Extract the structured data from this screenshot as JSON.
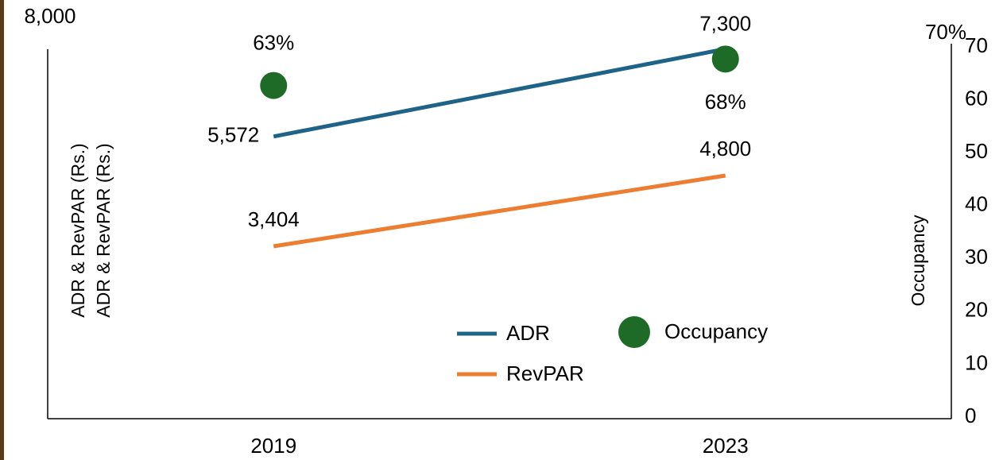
{
  "chart_data": {
    "type": "line",
    "categories": [
      "2019",
      "2023"
    ],
    "series": [
      {
        "name": "ADR",
        "color": "#1f6488",
        "values": [
          5572,
          7300
        ],
        "value_labels": [
          "5,572",
          "7,300"
        ]
      },
      {
        "name": "RevPAR",
        "color": "#ed7d31",
        "values": [
          3404,
          4800
        ],
        "value_labels": [
          "3,404",
          "4,800"
        ]
      },
      {
        "name": "Occupancy",
        "type": "scatter",
        "axis": "y2",
        "color": "#1e6b28",
        "values": [
          63,
          68
        ],
        "value_labels": [
          "63%",
          "68%"
        ]
      }
    ],
    "ylim": [
      0,
      8000
    ],
    "yticks": [
      {
        "value": 8000,
        "label": "8,000"
      }
    ],
    "y2lim": [
      0,
      70
    ],
    "y2ticks": [
      0,
      10,
      20,
      30,
      40,
      50,
      60,
      70
    ],
    "y2_top_label": "70%",
    "y_labels": [
      "ADR & RevPAR (Rs.)",
      "ADR & RevPAR (Rs.)"
    ],
    "y2_label": "Occupancy",
    "grid": false
  }
}
